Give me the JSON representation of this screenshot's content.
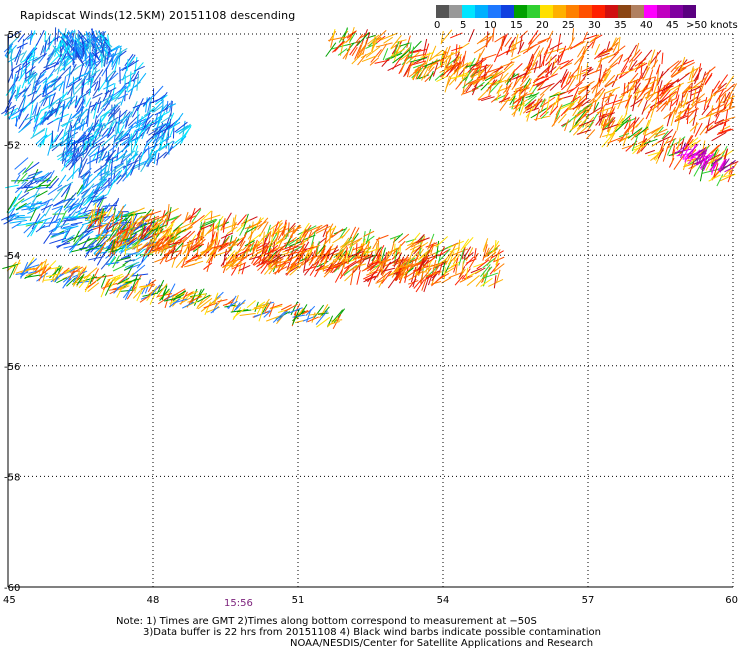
{
  "title": "Rapidscat Winds(12.5KM) 20151108 descending",
  "colorbar": {
    "colors": [
      "#555555",
      "#999999",
      "#00e5ff",
      "#00b0ff",
      "#1e78ff",
      "#1040e0",
      "#00a000",
      "#30d030",
      "#ffe000",
      "#ffb000",
      "#ff8000",
      "#ff5000",
      "#ff2000",
      "#d01010",
      "#8b4513",
      "#b08060",
      "#ff00ff",
      "#c000c0",
      "#8000a0",
      "#5a0080"
    ],
    "labels": [
      "0",
      "5",
      "10",
      "15",
      "20",
      "25",
      "30",
      "35",
      "40",
      "45",
      ">50 knots"
    ]
  },
  "axes": {
    "x_ticks": [
      "45",
      "48",
      "51",
      "54",
      "57",
      "60"
    ],
    "y_ticks": [
      "-50",
      "-52",
      "-54",
      "-56",
      "-58",
      "-60"
    ]
  },
  "time_label": "15:56",
  "notes": [
    "Note: 1) Times are GMT 2)Times along bottom correspond to measurement at −50S",
    "3)Data buffer is 22 hrs from 20151108 4) Black wind barbs indicate possible contamination",
    "NOAA/NESDIS/Center for Satellite Applications and Research"
  ]
}
